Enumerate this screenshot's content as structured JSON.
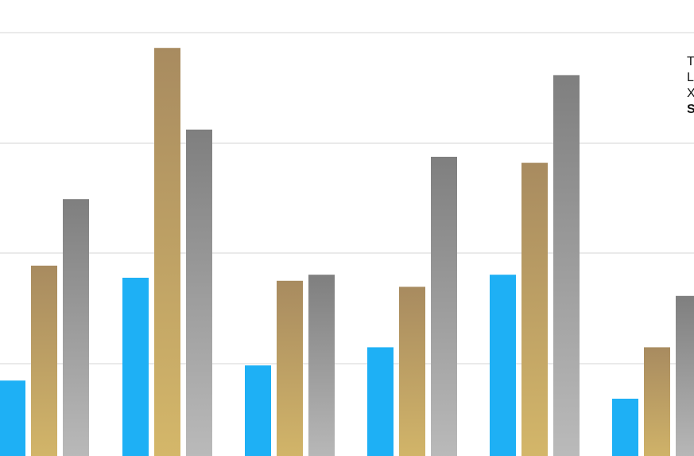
{
  "chart_data": {
    "type": "bar",
    "categories": [
      "",
      "",
      "",
      "",
      "",
      ""
    ],
    "series": [
      {
        "values": [
          31,
          65,
          36,
          42,
          66,
          25
        ],
        "color": "#1eb0f5"
      },
      {
        "values": [
          69,
          141,
          64,
          62,
          103,
          42
        ],
        "color": "#c4a467"
      },
      {
        "values": [
          91,
          114,
          66,
          105,
          132,
          59
        ],
        "color": "#9a9a9a"
      }
    ],
    "ylim": [
      0,
      150
    ],
    "grid": true,
    "legend": {
      "placement": "top-right",
      "fragments": [
        "T",
        "L",
        "X",
        "S"
      ]
    }
  }
}
